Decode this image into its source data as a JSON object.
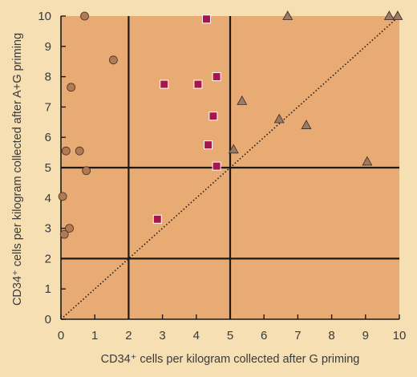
{
  "chart_data": {
    "type": "scatter",
    "xlabel": "CD34⁺ cells per kilogram collected after G priming",
    "ylabel": "CD34⁺ cells per kilogram collected after A+G priming",
    "xlim": [
      0,
      10
    ],
    "ylim": [
      0,
      10
    ],
    "x_ticks": [
      "0",
      "1",
      "2",
      "3",
      "4",
      "5",
      "6",
      "7",
      "8",
      "9",
      "10"
    ],
    "y_ticks": [
      "0",
      "1",
      "2",
      "3",
      "4",
      "5",
      "6",
      "7",
      "8",
      "9",
      "10"
    ],
    "grid": false,
    "reference_lines": {
      "vertical": [
        2,
        5
      ],
      "horizontal": [
        2,
        5
      ],
      "diagonal": "y = x"
    },
    "series": [
      {
        "marker": "circle",
        "color": "#b07a55",
        "points": [
          {
            "x": 0.7,
            "y": 10.0
          },
          {
            "x": 1.55,
            "y": 8.55
          },
          {
            "x": 0.3,
            "y": 7.65
          },
          {
            "x": 0.15,
            "y": 5.55
          },
          {
            "x": 0.55,
            "y": 5.55
          },
          {
            "x": 0.75,
            "y": 4.9
          },
          {
            "x": 0.05,
            "y": 4.05
          },
          {
            "x": 0.25,
            "y": 3.0
          },
          {
            "x": 0.1,
            "y": 2.8
          }
        ]
      },
      {
        "marker": "square",
        "color": "#a8154c",
        "points": [
          {
            "x": 4.3,
            "y": 9.9
          },
          {
            "x": 4.6,
            "y": 8.0
          },
          {
            "x": 3.05,
            "y": 7.75
          },
          {
            "x": 4.05,
            "y": 7.75
          },
          {
            "x": 4.5,
            "y": 6.7
          },
          {
            "x": 4.35,
            "y": 5.75
          },
          {
            "x": 4.6,
            "y": 5.05
          },
          {
            "x": 2.85,
            "y": 3.3
          }
        ]
      },
      {
        "marker": "triangle",
        "color": "#9a7b63",
        "points": [
          {
            "x": 6.7,
            "y": 10.0
          },
          {
            "x": 9.7,
            "y": 10.0
          },
          {
            "x": 9.95,
            "y": 10.0
          },
          {
            "x": 5.35,
            "y": 7.2
          },
          {
            "x": 6.45,
            "y": 6.6
          },
          {
            "x": 7.25,
            "y": 6.4
          },
          {
            "x": 5.1,
            "y": 5.6
          },
          {
            "x": 9.05,
            "y": 5.2
          }
        ]
      }
    ],
    "colors": {
      "page_background": "#f6dfb3",
      "plot_background": "#e9ab74",
      "lines": "#1a1a1a",
      "text": "#3a3a3a"
    }
  }
}
